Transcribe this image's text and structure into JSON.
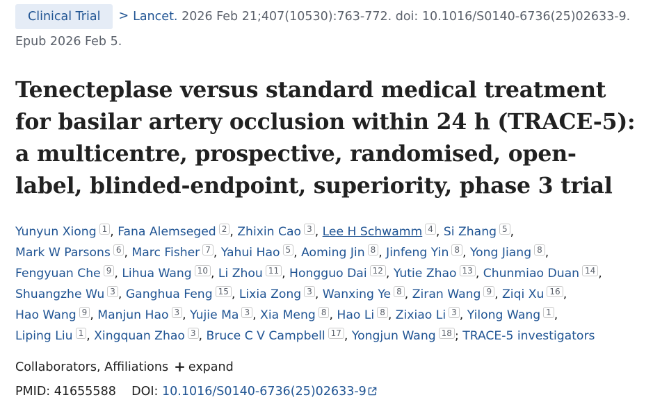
{
  "header": {
    "badge": "Clinical Trial",
    "chevron": ">",
    "journal": "Lancet.",
    "citation": " 2026 Feb 21;407(10530):763-772. doi: 10.1016/S0140-6736(25)02633-9.",
    "epub": "Epub 2026 Feb 5."
  },
  "title": "Tenecteplase versus standard medical treatment for basilar artery occlusion within 24 h (TRACE-5): a multicentre, prospective, randomised, open-label, blinded-endpoint, superiority, phase 3 trial",
  "authors": [
    {
      "name": "Yunyun Xiong",
      "aff": "1"
    },
    {
      "name": "Fana Alemseged",
      "aff": "2"
    },
    {
      "name": "Zhixin Cao",
      "aff": "3"
    },
    {
      "name": "Lee H Schwamm",
      "aff": "4"
    },
    {
      "name": "Si Zhang",
      "aff": "5"
    },
    {
      "name": "Mark W Parsons",
      "aff": "6"
    },
    {
      "name": "Marc Fisher",
      "aff": "7"
    },
    {
      "name": "Yahui Hao",
      "aff": "5"
    },
    {
      "name": "Aoming Jin",
      "aff": "8"
    },
    {
      "name": "Jinfeng Yin",
      "aff": "8"
    },
    {
      "name": "Yong Jiang",
      "aff": "8"
    },
    {
      "name": "Fengyuan Che",
      "aff": "9"
    },
    {
      "name": "Lihua Wang",
      "aff": "10"
    },
    {
      "name": "Li Zhou",
      "aff": "11"
    },
    {
      "name": "Hongguo Dai",
      "aff": "12"
    },
    {
      "name": "Yutie Zhao",
      "aff": "13"
    },
    {
      "name": "Chunmiao Duan",
      "aff": "14"
    },
    {
      "name": "Shuangzhe Wu",
      "aff": "3"
    },
    {
      "name": "Ganghua Feng",
      "aff": "15"
    },
    {
      "name": "Lixia Zong",
      "aff": "3"
    },
    {
      "name": "Wanxing Ye",
      "aff": "8"
    },
    {
      "name": "Ziran Wang",
      "aff": "9"
    },
    {
      "name": "Ziqi Xu",
      "aff": "16"
    },
    {
      "name": "Hao Wang",
      "aff": "9"
    },
    {
      "name": "Manjun Hao",
      "aff": "3"
    },
    {
      "name": "Yujie Ma",
      "aff": "3"
    },
    {
      "name": "Xia Meng",
      "aff": "8"
    },
    {
      "name": "Hao Li",
      "aff": "8"
    },
    {
      "name": "Zixiao Li",
      "aff": "3"
    },
    {
      "name": "Yilong Wang",
      "aff": "1"
    },
    {
      "name": "Liping Liu",
      "aff": "1"
    },
    {
      "name": "Xingquan Zhao",
      "aff": "3"
    },
    {
      "name": "Bruce C V Campbell",
      "aff": "17"
    },
    {
      "name": "Yongjun Wang",
      "aff": "18"
    }
  ],
  "group_author": "TRACE-5 investigators",
  "collab": {
    "label": "Collaborators, Affiliations",
    "plus": "+",
    "expand": "expand"
  },
  "ids": {
    "pmid_label": "PMID:",
    "pmid": "41655588",
    "doi_label": "DOI:",
    "doi": "10.1016/S0140-6736(25)02633-9"
  },
  "colors": {
    "link": "#205493",
    "badge_bg": "#e5ecf6",
    "text": "#212121",
    "muted": "#5b616b"
  }
}
